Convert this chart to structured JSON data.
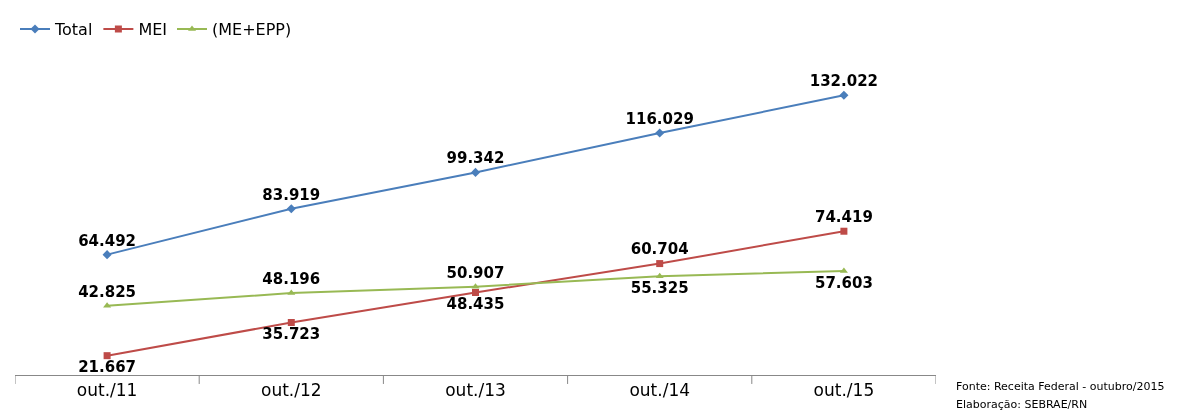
{
  "chart_data": {
    "type": "line",
    "categories": [
      "out./11",
      "out./12",
      "out./13",
      "out./14",
      "out./15"
    ],
    "series": [
      {
        "name": "Total",
        "color": "#4a7ebb",
        "marker": "diamond",
        "values": [
          64492,
          83919,
          99342,
          116029,
          132022
        ],
        "value_labels": [
          "64.492",
          "83.919",
          "99.342",
          "116.029",
          "132.022"
        ]
      },
      {
        "name": "MEI",
        "color": "#be4b48",
        "marker": "square",
        "values": [
          21667,
          35723,
          48435,
          60704,
          74419
        ],
        "value_labels": [
          "21.667",
          "35.723",
          "48.435",
          "60.704",
          "74.419"
        ]
      },
      {
        "name": "(ME+EPP)",
        "color": "#98b954",
        "marker": "triangle",
        "values": [
          42825,
          48196,
          50907,
          55325,
          57603
        ],
        "value_labels": [
          "42.825",
          "48.196",
          "50.907",
          "55.325",
          "57.603"
        ]
      }
    ],
    "annotations": [
      "Fonte: Receita Federal - outubro/2015",
      "Elaboração: SEBRAE/RN"
    ],
    "legend": "top left",
    "tick_labels": "x"
  }
}
